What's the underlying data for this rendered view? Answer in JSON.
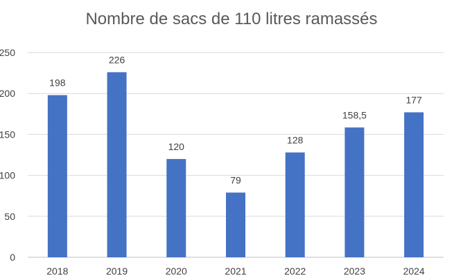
{
  "chart_data": {
    "type": "bar",
    "title": "Nombre de sacs de 110 litres ramassés",
    "categories": [
      "2018",
      "2019",
      "2020",
      "2021",
      "2022",
      "2023",
      "2024"
    ],
    "values": [
      198,
      226,
      120,
      79,
      128,
      158.5,
      177
    ],
    "data_labels": [
      "198",
      "226",
      "120",
      "79",
      "128",
      "158,5",
      "177"
    ],
    "y_ticks": [
      0,
      50,
      100,
      150,
      200,
      250
    ],
    "y_tick_labels": [
      "0",
      "50",
      "100",
      "150",
      "200",
      "250"
    ],
    "ylim": [
      0,
      250
    ],
    "grid": true,
    "legend": "none",
    "bar_color": "#4472C4",
    "grid_color": "#D9D9D9",
    "text_color": "#404040"
  }
}
